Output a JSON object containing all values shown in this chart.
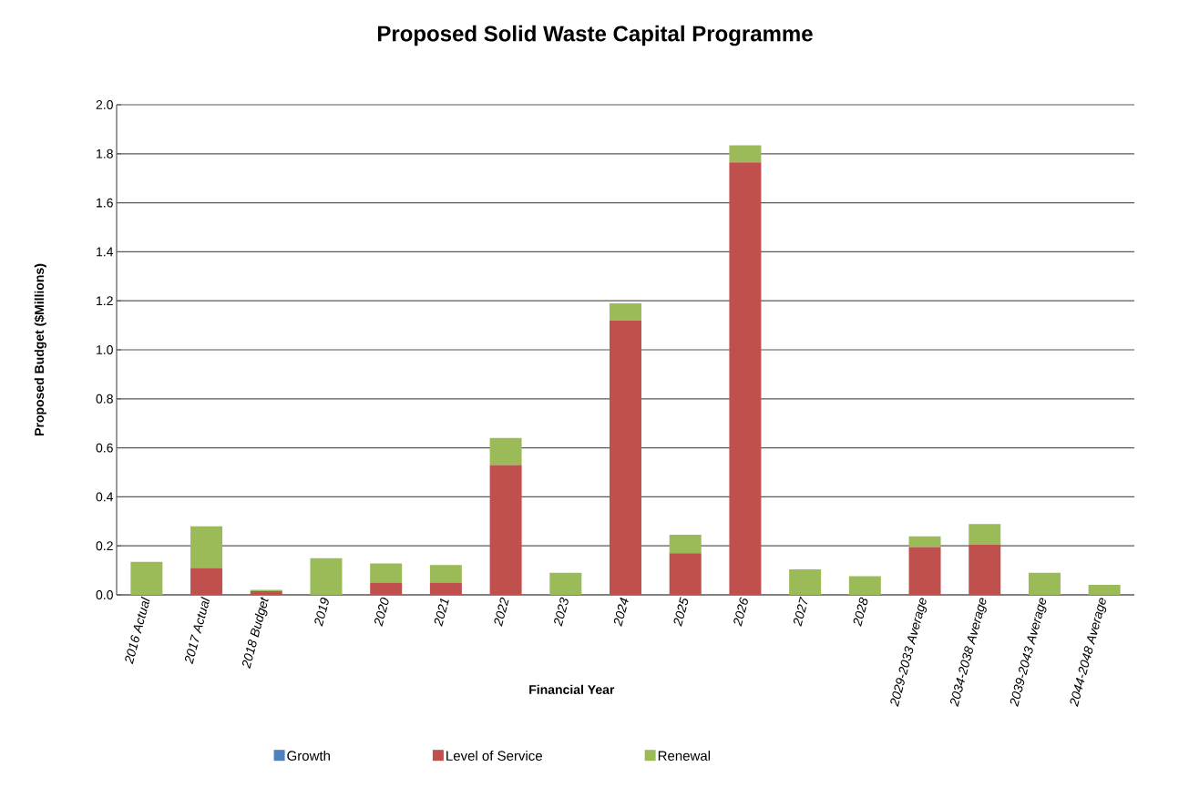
{
  "chart_data": {
    "type": "bar",
    "stacked": true,
    "title": "Proposed Solid Waste Capital Programme",
    "xlabel": "Financial Year",
    "ylabel": "Proposed Budget ($Millions)",
    "categories": [
      "2016 Actual",
      "2017 Actual",
      "2018 Budget",
      "2019",
      "2020",
      "2021",
      "2022",
      "2023",
      "2024",
      "2025",
      "2026",
      "2027",
      "2028",
      "2029-2033 Average",
      "2034-2038 Average",
      "2039-2043 Average",
      "2044-2048 Average"
    ],
    "series": [
      {
        "name": "Growth",
        "color": "#4f81bd",
        "values": [
          0,
          0,
          0,
          0,
          0,
          0,
          0,
          0,
          0,
          0,
          0,
          0,
          0,
          0,
          0,
          0,
          0
        ]
      },
      {
        "name": "Level of Service",
        "color": "#c0504d",
        "values": [
          0,
          0.11,
          0.015,
          0,
          0.05,
          0.05,
          0.53,
          0,
          1.12,
          0.17,
          1.765,
          0,
          0,
          0.195,
          0.205,
          0,
          0
        ]
      },
      {
        "name": "Renewal",
        "color": "#9bbb59",
        "values": [
          0.135,
          0.17,
          0.005,
          0.15,
          0.078,
          0.072,
          0.11,
          0.09,
          0.07,
          0.075,
          0.07,
          0.104,
          0.076,
          0.044,
          0.084,
          0.09,
          0.041
        ]
      }
    ],
    "ylim": [
      0,
      2.0
    ],
    "yticks": [
      {
        "value": 0,
        "label": "0.0"
      },
      {
        "value": 0.2,
        "label": "0.2"
      },
      {
        "value": 0.4,
        "label": "0.4"
      },
      {
        "value": 0.6,
        "label": "0.6"
      },
      {
        "value": 0.8,
        "label": "0.8"
      },
      {
        "value": 1.0,
        "label": "1.0"
      },
      {
        "value": 1.2,
        "label": "1.2"
      },
      {
        "value": 1.4,
        "label": "1.4"
      },
      {
        "value": 1.6,
        "label": "1.6"
      },
      {
        "value": 1.8,
        "label": "1.8"
      },
      {
        "value": 2.0,
        "label": "2.0"
      }
    ],
    "grid": "y",
    "legend": "bottom"
  }
}
